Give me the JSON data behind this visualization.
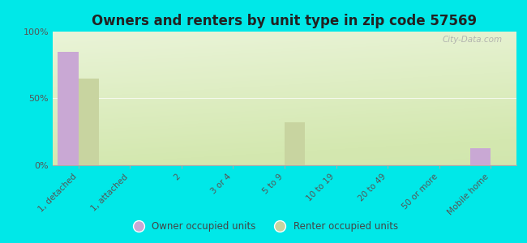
{
  "title": "Owners and renters by unit type in zip code 57569",
  "categories": [
    "1, detached",
    "1, attached",
    "2",
    "3 or 4",
    "5 to 9",
    "10 to 19",
    "20 to 49",
    "50 or more",
    "Mobile home"
  ],
  "owner_values": [
    85,
    0,
    0,
    0,
    0,
    0,
    0,
    0,
    13
  ],
  "renter_values": [
    65,
    0,
    0,
    0,
    32,
    0,
    0,
    0,
    0
  ],
  "owner_color": "#c9a8d4",
  "renter_color": "#c8d4a0",
  "background_color": "#00e8e8",
  "ylim": [
    0,
    100
  ],
  "yticks": [
    0,
    50,
    100
  ],
  "ytick_labels": [
    "0%",
    "50%",
    "100%"
  ],
  "legend_owner": "Owner occupied units",
  "legend_renter": "Renter occupied units",
  "watermark": "City-Data.com",
  "bar_width": 0.4,
  "title_fontsize": 12,
  "tick_fontsize": 7.5,
  "ytick_fontsize": 8
}
